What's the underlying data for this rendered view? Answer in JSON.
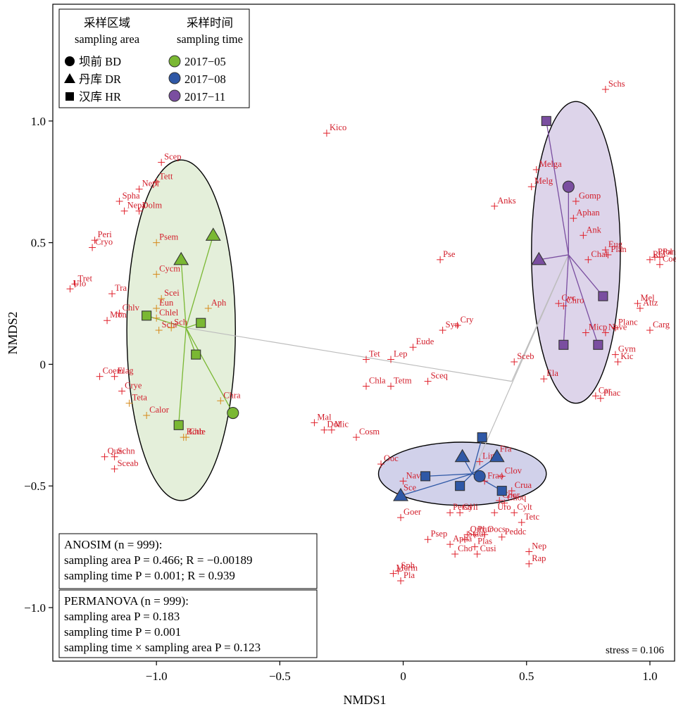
{
  "chart_data": {
    "type": "scatter",
    "xlabel": "NMDS1",
    "ylabel": "NMDS2",
    "xlim": [
      -1.42,
      1.1
    ],
    "ylim": [
      -1.22,
      1.48
    ],
    "xticks": [
      -1.0,
      -0.5,
      0,
      0.5,
      1.0
    ],
    "xtick_labels": [
      "−1.0",
      "−0.5",
      "0",
      "0.5",
      "1.0"
    ],
    "yticks": [
      -1.0,
      -0.5,
      0,
      0.5,
      1.0
    ],
    "ytick_labels": [
      "−1.0",
      "−0.5",
      "0",
      "0.5",
      "1.0"
    ],
    "stress_text": "stress = 0.106",
    "legend": {
      "area_header_cn": "采样区域",
      "area_header_en": "sampling area",
      "time_header_cn": "采样时间",
      "time_header_en": "sampling time",
      "areas": [
        {
          "symbol": "circle",
          "label": "坝前 BD"
        },
        {
          "symbol": "triangle",
          "label": "丹库 DR"
        },
        {
          "symbol": "square",
          "label": "汉库 HR"
        }
      ],
      "times": [
        {
          "color": "#7ab833",
          "label": "2017−05"
        },
        {
          "color": "#2f58a6",
          "label": "2017−08"
        },
        {
          "color": "#7a4ea0",
          "label": "2017−11"
        }
      ]
    },
    "anosim": {
      "title": "ANOSIM (n = 999):",
      "line1": "sampling area P = 0.466; R = −0.00189",
      "line2": "sampling time P = 0.001; R = 0.939"
    },
    "permanova": {
      "title": "PERMANOVA (n = 999):",
      "line1": "sampling area P = 0.183",
      "line2": "sampling time P = 0.001",
      "line3": "sampling time × sampling area P = 0.123"
    },
    "groups": [
      {
        "time": "2017-05",
        "color": "#7ab833",
        "fill": "#dfecd3",
        "ellipse": {
          "cx": -0.9,
          "cy": 0.14,
          "rx": 0.22,
          "ry": 0.7
        },
        "centroid": [
          -0.88,
          0.15
        ],
        "sites": [
          {
            "shape": "triangle",
            "x": -0.9,
            "y": 0.43
          },
          {
            "shape": "triangle",
            "x": -0.77,
            "y": 0.53
          },
          {
            "shape": "square",
            "x": -1.04,
            "y": 0.2
          },
          {
            "shape": "square",
            "x": -0.82,
            "y": 0.17
          },
          {
            "shape": "square",
            "x": -0.84,
            "y": 0.04
          },
          {
            "shape": "square",
            "x": -0.91,
            "y": -0.25
          },
          {
            "shape": "circle",
            "x": -0.69,
            "y": -0.2
          }
        ]
      },
      {
        "time": "2017-08",
        "color": "#2f58a6",
        "fill": "#c9c9e6",
        "ellipse": {
          "cx": 0.24,
          "cy": -0.45,
          "rx": 0.34,
          "ry": 0.13
        },
        "centroid": [
          0.28,
          -0.45
        ],
        "sites": [
          {
            "shape": "square",
            "x": 0.32,
            "y": -0.3
          },
          {
            "shape": "triangle",
            "x": 0.24,
            "y": -0.38
          },
          {
            "shape": "triangle",
            "x": 0.38,
            "y": -0.38
          },
          {
            "shape": "square",
            "x": 0.09,
            "y": -0.46
          },
          {
            "shape": "circle",
            "x": 0.31,
            "y": -0.46
          },
          {
            "shape": "square",
            "x": 0.23,
            "y": -0.5
          },
          {
            "shape": "triangle",
            "x": -0.01,
            "y": -0.54
          },
          {
            "shape": "square",
            "x": 0.4,
            "y": -0.52
          }
        ]
      },
      {
        "time": "2017-11",
        "color": "#7a4ea0",
        "fill": "#d7cde6",
        "ellipse": {
          "cx": 0.7,
          "cy": 0.46,
          "rx": 0.18,
          "ry": 0.62
        },
        "centroid": [
          0.67,
          0.45
        ],
        "sites": [
          {
            "shape": "square",
            "x": 0.58,
            "y": 1.0
          },
          {
            "shape": "circle",
            "x": 0.67,
            "y": 0.73
          },
          {
            "shape": "triangle",
            "x": 0.55,
            "y": 0.43
          },
          {
            "shape": "square",
            "x": 0.81,
            "y": 0.28
          },
          {
            "shape": "square",
            "x": 0.65,
            "y": 0.08
          },
          {
            "shape": "square",
            "x": 0.79,
            "y": 0.08
          }
        ]
      }
    ],
    "centroid_links": [
      [
        -0.88,
        0.15
      ],
      [
        0.44,
        -0.07
      ],
      [
        0.67,
        0.45
      ],
      [
        0.28,
        -0.45
      ]
    ],
    "species": [
      {
        "n": "Scep",
        "x": -0.98,
        "y": 0.83,
        "c": "red"
      },
      {
        "n": "Tett",
        "x": -1.0,
        "y": 0.75,
        "c": "red"
      },
      {
        "n": "Spha",
        "x": -1.15,
        "y": 0.67,
        "c": "red"
      },
      {
        "n": "Nepl",
        "x": -1.07,
        "y": 0.72,
        "c": "red"
      },
      {
        "n": "Nepa",
        "x": -1.13,
        "y": 0.63,
        "c": "red"
      },
      {
        "n": "Dolm",
        "x": -1.07,
        "y": 0.63,
        "c": "red"
      },
      {
        "n": "Peri",
        "x": -1.25,
        "y": 0.51,
        "c": "red"
      },
      {
        "n": "Cryo",
        "x": -1.26,
        "y": 0.48,
        "c": "red"
      },
      {
        "n": "Psem",
        "x": -1.0,
        "y": 0.5,
        "c": "orange"
      },
      {
        "n": "Cycm",
        "x": -1.0,
        "y": 0.37,
        "c": "orange"
      },
      {
        "n": "Tret",
        "x": -1.33,
        "y": 0.33,
        "c": "red"
      },
      {
        "n": "Ulo",
        "x": -1.35,
        "y": 0.31,
        "c": "red"
      },
      {
        "n": "Tra",
        "x": -1.18,
        "y": 0.29,
        "c": "red"
      },
      {
        "n": "Scei",
        "x": -0.98,
        "y": 0.27,
        "c": "orange"
      },
      {
        "n": "Chlv",
        "x": -1.15,
        "y": 0.21,
        "c": "red"
      },
      {
        "n": "Mon",
        "x": -1.2,
        "y": 0.18,
        "c": "red"
      },
      {
        "n": "Eun",
        "x": -1.0,
        "y": 0.23,
        "c": "orange"
      },
      {
        "n": "Chlel",
        "x": -1.0,
        "y": 0.19,
        "c": "orange"
      },
      {
        "n": "Aph",
        "x": -0.79,
        "y": 0.23,
        "c": "orange"
      },
      {
        "n": "Schr",
        "x": -0.99,
        "y": 0.14,
        "c": "orange"
      },
      {
        "n": "Sch",
        "x": -0.94,
        "y": 0.15,
        "c": "orange"
      },
      {
        "n": "Elag",
        "x": -1.17,
        "y": -0.05,
        "c": "red"
      },
      {
        "n": "Coem",
        "x": -1.23,
        "y": -0.05,
        "c": "red"
      },
      {
        "n": "Chra",
        "x": -0.74,
        "y": -0.15,
        "c": "orange"
      },
      {
        "n": "Crye",
        "x": -1.14,
        "y": -0.11,
        "c": "red"
      },
      {
        "n": "Teta",
        "x": -1.11,
        "y": -0.16,
        "c": "orange"
      },
      {
        "n": "Calor",
        "x": -1.04,
        "y": -0.21,
        "c": "orange"
      },
      {
        "n": "Botb",
        "x": -0.89,
        "y": -0.3,
        "c": "orange"
      },
      {
        "n": "Chle",
        "x": -0.88,
        "y": -0.3,
        "c": "orange"
      },
      {
        "n": "Schn",
        "x": -1.17,
        "y": -0.38,
        "c": "red"
      },
      {
        "n": "Quac",
        "x": -1.21,
        "y": -0.38,
        "c": "red"
      },
      {
        "n": "Sceab",
        "x": -1.17,
        "y": -0.43,
        "c": "red"
      },
      {
        "n": "Kico",
        "x": -0.31,
        "y": 0.95,
        "c": "red"
      },
      {
        "n": "Pse",
        "x": 0.15,
        "y": 0.43,
        "c": "red"
      },
      {
        "n": "Anks",
        "x": 0.37,
        "y": 0.65,
        "c": "red"
      },
      {
        "n": "Syn",
        "x": 0.16,
        "y": 0.14,
        "c": "red"
      },
      {
        "n": "Cry",
        "x": 0.22,
        "y": 0.16,
        "c": "red"
      },
      {
        "n": "Eude",
        "x": 0.04,
        "y": 0.07,
        "c": "red"
      },
      {
        "n": "Tet",
        "x": -0.15,
        "y": 0.02,
        "c": "red"
      },
      {
        "n": "Lep",
        "x": -0.05,
        "y": 0.02,
        "c": "red"
      },
      {
        "n": "Chla",
        "x": -0.15,
        "y": -0.09,
        "c": "red"
      },
      {
        "n": "Tetm",
        "x": -0.05,
        "y": -0.09,
        "c": "red"
      },
      {
        "n": "Sceq",
        "x": 0.1,
        "y": -0.07,
        "c": "red"
      },
      {
        "n": "Sceb",
        "x": 0.45,
        "y": 0.01,
        "c": "red"
      },
      {
        "n": "Mal",
        "x": -0.36,
        "y": -0.24,
        "c": "red"
      },
      {
        "n": "Dol",
        "x": -0.32,
        "y": -0.27,
        "c": "red"
      },
      {
        "n": "Mic",
        "x": -0.29,
        "y": -0.27,
        "c": "red"
      },
      {
        "n": "Cosm",
        "x": -0.19,
        "y": -0.3,
        "c": "red"
      },
      {
        "n": "Schs",
        "x": 0.82,
        "y": 1.13,
        "c": "red"
      },
      {
        "n": "Melga",
        "x": 0.54,
        "y": 0.8,
        "c": "red"
      },
      {
        "n": "Melg",
        "x": 0.52,
        "y": 0.73,
        "c": "red"
      },
      {
        "n": "Gomp",
        "x": 0.7,
        "y": 0.67,
        "c": "red"
      },
      {
        "n": "Aphan",
        "x": 0.69,
        "y": 0.6,
        "c": "red"
      },
      {
        "n": "Ank",
        "x": 0.73,
        "y": 0.53,
        "c": "red"
      },
      {
        "n": "Eug",
        "x": 0.82,
        "y": 0.47,
        "c": "red"
      },
      {
        "n": "Plan",
        "x": 0.83,
        "y": 0.45,
        "c": "red"
      },
      {
        "n": "Chal",
        "x": 0.75,
        "y": 0.43,
        "c": "red"
      },
      {
        "n": "Prol",
        "x": 1.02,
        "y": 0.44,
        "c": "red"
      },
      {
        "n": "Panm",
        "x": 1.04,
        "y": 0.44,
        "c": "red"
      },
      {
        "n": "Rhi",
        "x": 1.0,
        "y": 0.43,
        "c": "red"
      },
      {
        "n": "Coer",
        "x": 1.04,
        "y": 0.41,
        "c": "red"
      },
      {
        "n": "Mel",
        "x": 0.95,
        "y": 0.25,
        "c": "red"
      },
      {
        "n": "Attz",
        "x": 0.96,
        "y": 0.23,
        "c": "red"
      },
      {
        "n": "Cyc",
        "x": 0.63,
        "y": 0.25,
        "c": "red"
      },
      {
        "n": "Chro",
        "x": 0.65,
        "y": 0.24,
        "c": "red"
      },
      {
        "n": "Planc",
        "x": 0.86,
        "y": 0.15,
        "c": "red"
      },
      {
        "n": "Nave",
        "x": 0.82,
        "y": 0.13,
        "c": "red"
      },
      {
        "n": "Micp",
        "x": 0.74,
        "y": 0.13,
        "c": "red"
      },
      {
        "n": "Carg",
        "x": 1.0,
        "y": 0.14,
        "c": "red"
      },
      {
        "n": "Gym",
        "x": 0.86,
        "y": 0.04,
        "c": "red"
      },
      {
        "n": "Kic",
        "x": 0.87,
        "y": 0.01,
        "c": "red"
      },
      {
        "n": "Ela",
        "x": 0.57,
        "y": -0.06,
        "c": "red"
      },
      {
        "n": "Car",
        "x": 0.78,
        "y": -0.13,
        "c": "red"
      },
      {
        "n": "Phac",
        "x": 0.8,
        "y": -0.14,
        "c": "red"
      },
      {
        "n": "Ooc",
        "x": -0.09,
        "y": -0.41,
        "c": "red"
      },
      {
        "n": "Fra",
        "x": 0.38,
        "y": -0.37,
        "c": "red"
      },
      {
        "n": "Lim",
        "x": 0.31,
        "y": -0.4,
        "c": "red"
      },
      {
        "n": "Clov",
        "x": 0.4,
        "y": -0.46,
        "c": "red"
      },
      {
        "n": "Nav",
        "x": 0.0,
        "y": -0.48,
        "c": "red"
      },
      {
        "n": "Frao",
        "x": 0.33,
        "y": -0.48,
        "c": "red"
      },
      {
        "n": "Sce",
        "x": -0.01,
        "y": -0.53,
        "c": "red"
      },
      {
        "n": "Crua",
        "x": 0.44,
        "y": -0.52,
        "c": "red"
      },
      {
        "n": "Chor",
        "x": 0.39,
        "y": -0.56,
        "c": "red"
      },
      {
        "n": "Choq",
        "x": 0.41,
        "y": -0.57,
        "c": "red"
      },
      {
        "n": "Goer",
        "x": -0.01,
        "y": -0.63,
        "c": "red"
      },
      {
        "n": "Cyli",
        "x": 0.23,
        "y": -0.61,
        "c": "red"
      },
      {
        "n": "Petsd",
        "x": 0.19,
        "y": -0.61,
        "c": "red"
      },
      {
        "n": "Cylt",
        "x": 0.45,
        "y": -0.61,
        "c": "red"
      },
      {
        "n": "Uro",
        "x": 0.37,
        "y": -0.61,
        "c": "red"
      },
      {
        "n": "Tetc",
        "x": 0.48,
        "y": -0.65,
        "c": "red"
      },
      {
        "n": "Ortr",
        "x": 0.26,
        "y": -0.7,
        "c": "red"
      },
      {
        "n": "Plur",
        "x": 0.29,
        "y": -0.7,
        "c": "red"
      },
      {
        "n": "Oocs",
        "x": 0.33,
        "y": -0.7,
        "c": "red"
      },
      {
        "n": "Psep",
        "x": 0.1,
        "y": -0.72,
        "c": "red"
      },
      {
        "n": "Staur",
        "x": 0.25,
        "y": -0.72,
        "c": "red"
      },
      {
        "n": "Peddc",
        "x": 0.4,
        "y": -0.71,
        "c": "red"
      },
      {
        "n": "Apha",
        "x": 0.19,
        "y": -0.74,
        "c": "red"
      },
      {
        "n": "Plas",
        "x": 0.29,
        "y": -0.75,
        "c": "red"
      },
      {
        "n": "Cho",
        "x": 0.21,
        "y": -0.78,
        "c": "red"
      },
      {
        "n": "Cusi",
        "x": 0.3,
        "y": -0.78,
        "c": "red"
      },
      {
        "n": "Nep",
        "x": 0.51,
        "y": -0.77,
        "c": "red"
      },
      {
        "n": "Rap",
        "x": 0.51,
        "y": -0.82,
        "c": "red"
      },
      {
        "n": "Sph",
        "x": -0.02,
        "y": -0.85,
        "c": "red"
      },
      {
        "n": "Merm",
        "x": -0.04,
        "y": -0.86,
        "c": "red"
      },
      {
        "n": "Pla",
        "x": -0.01,
        "y": -0.89,
        "c": "red"
      }
    ]
  }
}
